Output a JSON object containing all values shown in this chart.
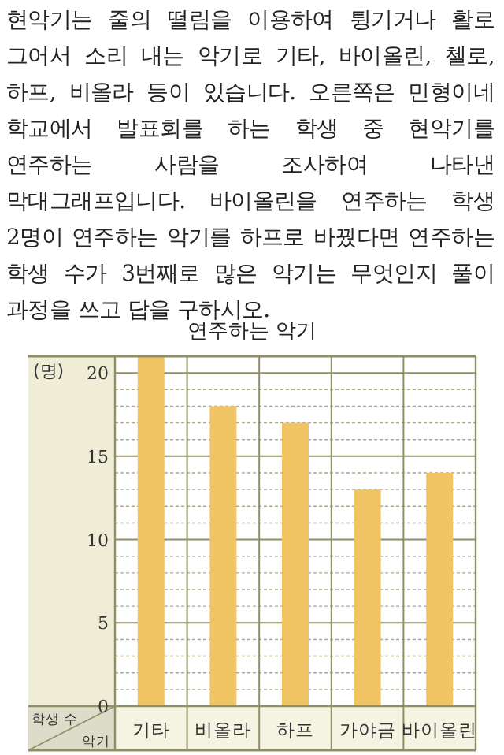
{
  "chart_data": {
    "type": "bar",
    "title": "연주하는 악기",
    "annotations": [
      "현악기는 줄의 떨림을 이용하여 튕기거나 활로 그어서 소리 내는 악기로 기타, 바이올린, 첼로, 하프, 비올라 등이 있습니다. 오른쪽은 민형이네 학교에서 발표회를 하는 학생 중 현악기를 연주하는 사람을 조사하여 나타낸 막대그래프입니다. 바이올린을 연주하는 학생 2명이 연주하는 악기를 하프로 바꿨다면 연주하는 학생 수가 3번째로 많은 악기는 무엇인지 풀이 과정을 쓰고 답을 구하시오.",
      "(명)"
    ],
    "xlabel": "악기",
    "ylabel": "학생 수",
    "categories": [
      "기타",
      "비올라",
      "하프",
      "가야금",
      "바이올린"
    ],
    "values": [
      21,
      18,
      17,
      13,
      14
    ],
    "color": "#f0c462",
    "ylim": [
      0,
      21
    ],
    "yticks": [
      0,
      5,
      10,
      15,
      20
    ],
    "grid": true
  }
}
